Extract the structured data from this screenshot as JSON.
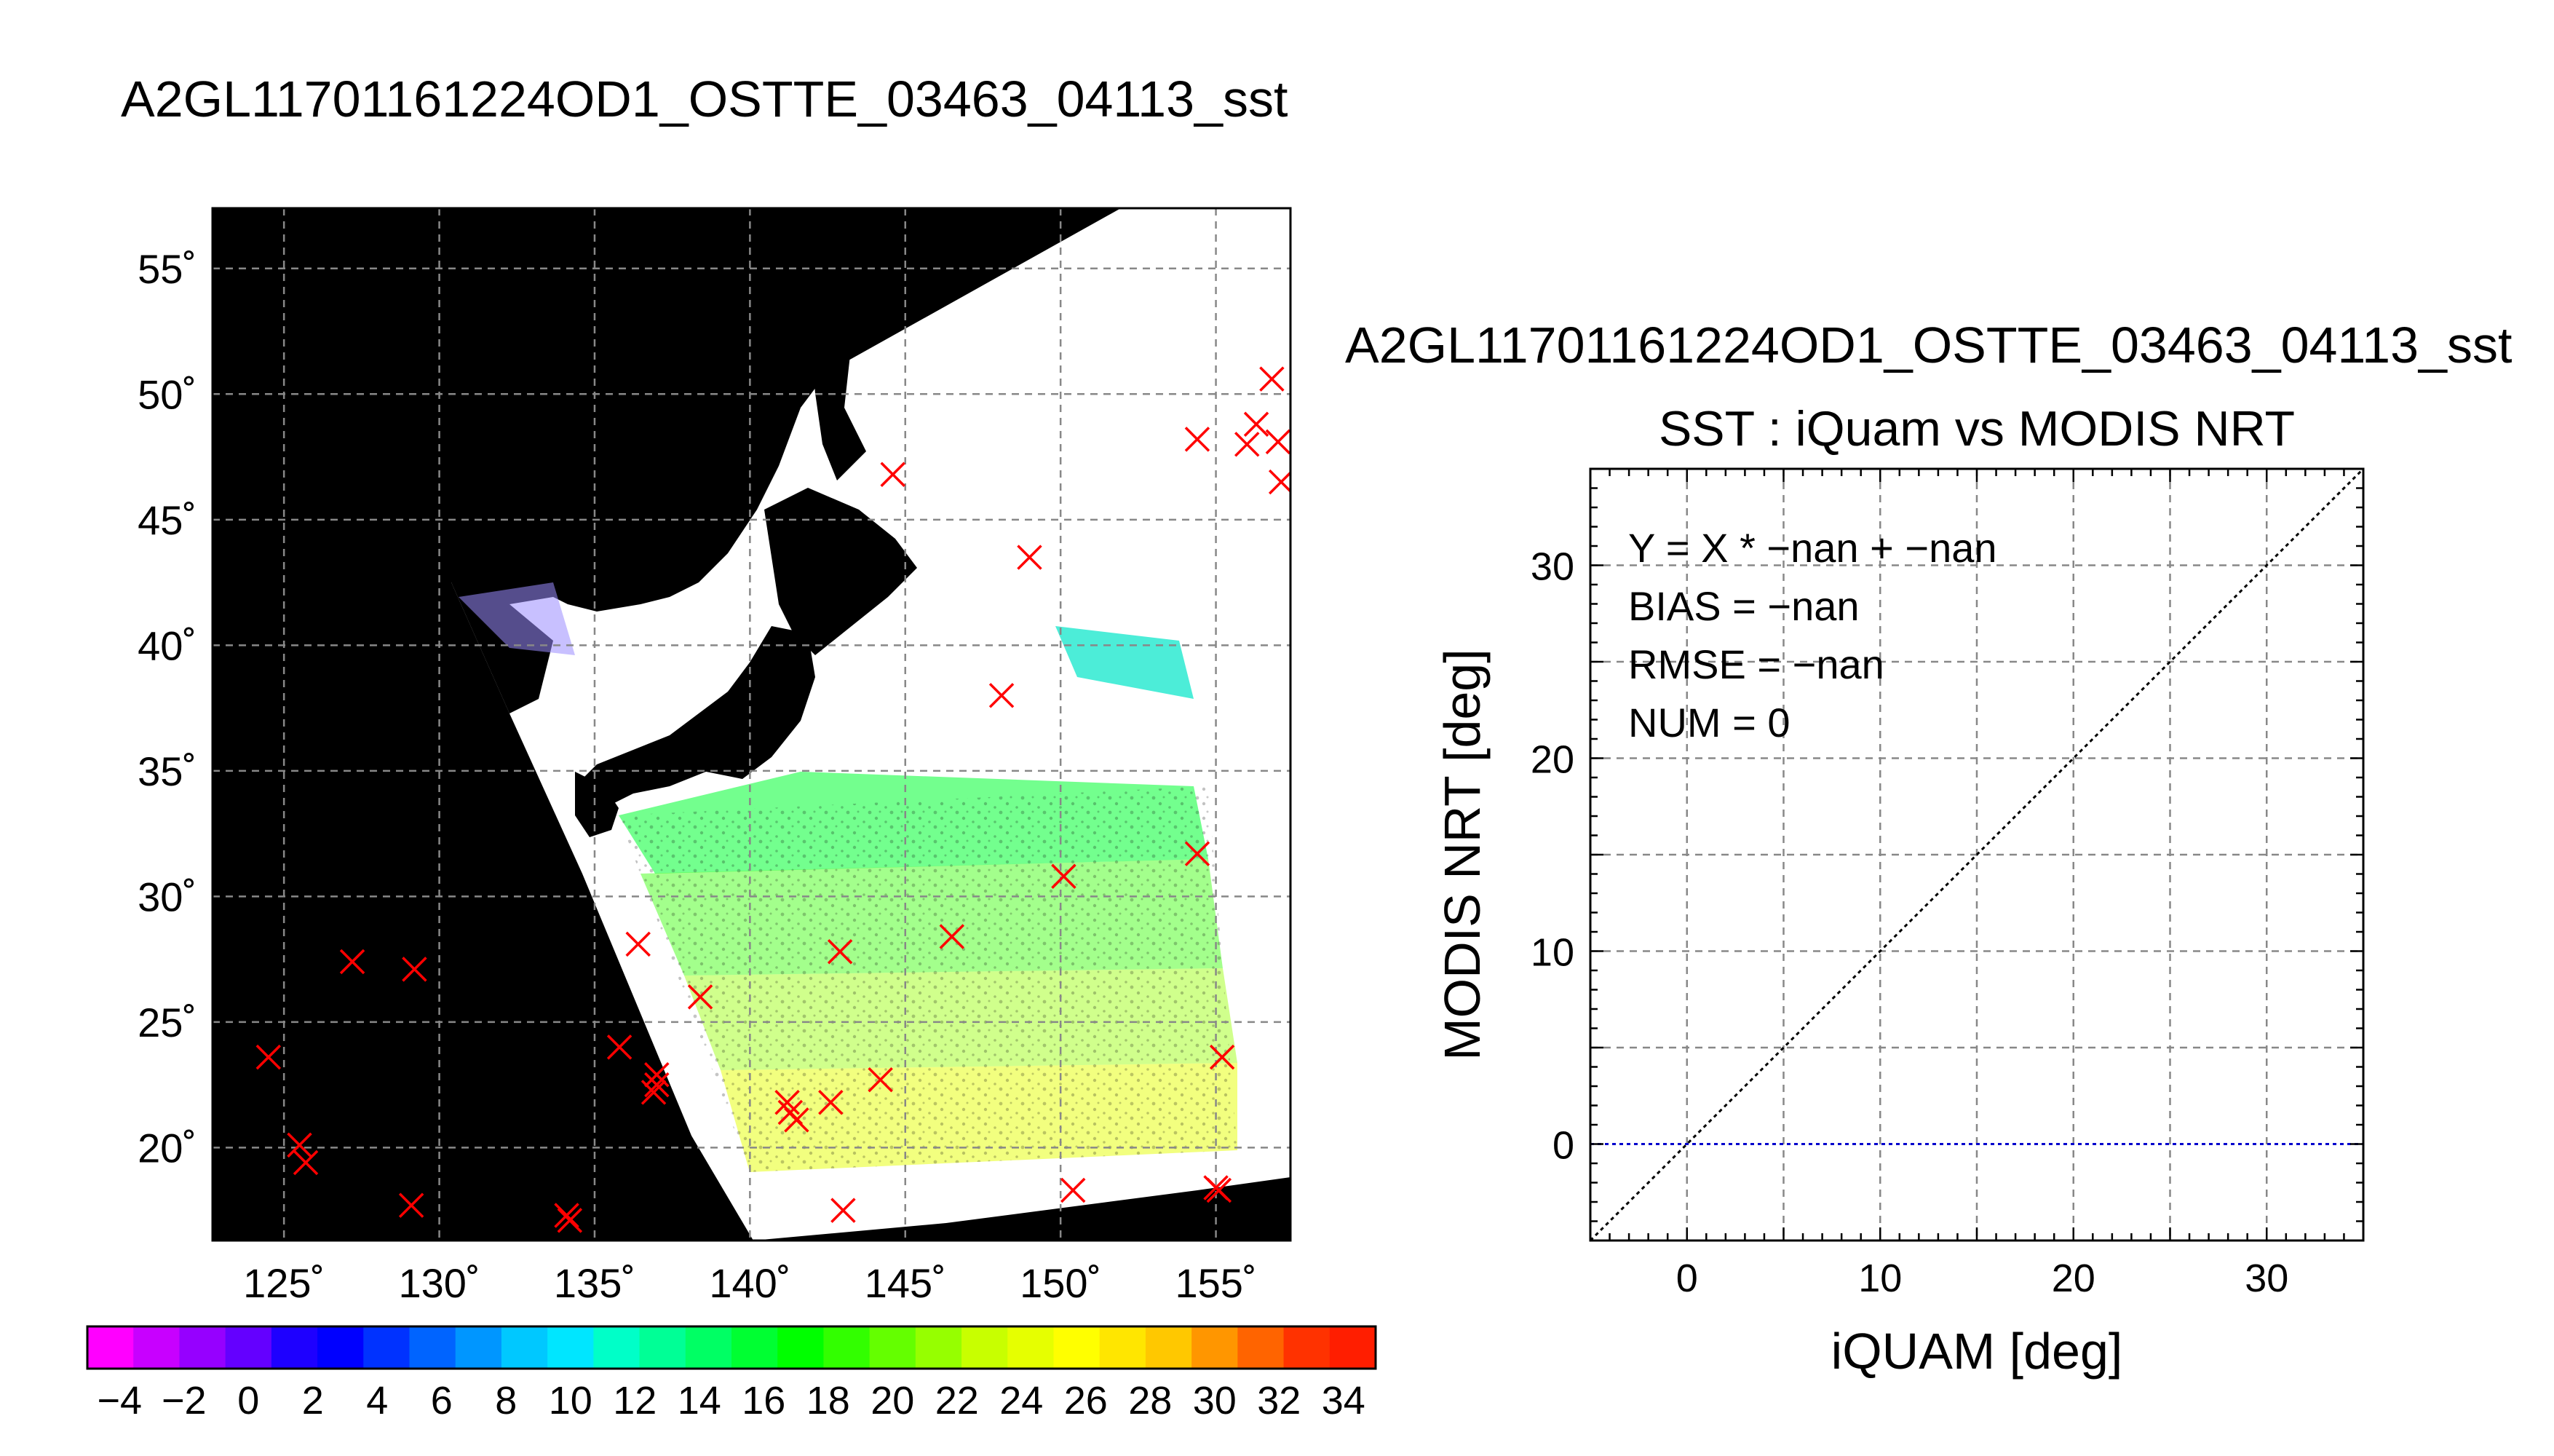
{
  "figure_title": "A2GL11701161224OD1_OSTTE_03463_04113_sst",
  "chart_data": [
    {
      "type": "map",
      "title": "A2GL11701161224OD1_OSTTE_03463_04113_sst",
      "xlim": [
        122.7,
        157.4
      ],
      "ylim": [
        16.3,
        57.4
      ],
      "xticks": [
        125,
        130,
        135,
        140,
        145,
        150,
        155
      ],
      "yticks": [
        20,
        25,
        30,
        35,
        40,
        45,
        50,
        55
      ],
      "xtick_labels": [
        "125˚",
        "130˚",
        "135˚",
        "140˚",
        "145˚",
        "150˚",
        "155˚"
      ],
      "ytick_labels": [
        "20˚",
        "25˚",
        "30˚",
        "35˚",
        "40˚",
        "45˚",
        "50˚",
        "55˚"
      ],
      "grid": true,
      "marker_color": "#ff0000",
      "marker_symbol": "x",
      "iquam_points": [
        {
          "lon": 124.5,
          "lat": 23.6
        },
        {
          "lon": 125.5,
          "lat": 20.1
        },
        {
          "lon": 125.7,
          "lat": 19.4
        },
        {
          "lon": 127.2,
          "lat": 27.4
        },
        {
          "lon": 129.2,
          "lat": 27.1
        },
        {
          "lon": 129.1,
          "lat": 17.7
        },
        {
          "lon": 134.1,
          "lat": 17.3
        },
        {
          "lon": 134.2,
          "lat": 17.1
        },
        {
          "lon": 135.8,
          "lat": 24.0
        },
        {
          "lon": 136.4,
          "lat": 28.1
        },
        {
          "lon": 137.0,
          "lat": 22.9
        },
        {
          "lon": 137.0,
          "lat": 22.5
        },
        {
          "lon": 136.9,
          "lat": 22.2
        },
        {
          "lon": 138.4,
          "lat": 26.0
        },
        {
          "lon": 141.2,
          "lat": 21.8
        },
        {
          "lon": 141.5,
          "lat": 21.1
        },
        {
          "lon": 141.3,
          "lat": 21.4
        },
        {
          "lon": 142.6,
          "lat": 21.8
        },
        {
          "lon": 142.9,
          "lat": 27.8
        },
        {
          "lon": 143.0,
          "lat": 17.5
        },
        {
          "lon": 144.2,
          "lat": 22.7
        },
        {
          "lon": 144.6,
          "lat": 46.8
        },
        {
          "lon": 146.5,
          "lat": 28.4
        },
        {
          "lon": 148.1,
          "lat": 38.0
        },
        {
          "lon": 149.0,
          "lat": 43.5
        },
        {
          "lon": 150.1,
          "lat": 30.8
        },
        {
          "lon": 150.4,
          "lat": 18.3
        },
        {
          "lon": 154.4,
          "lat": 31.7
        },
        {
          "lon": 154.4,
          "lat": 48.2
        },
        {
          "lon": 155.2,
          "lat": 23.6
        },
        {
          "lon": 155.0,
          "lat": 18.4
        },
        {
          "lon": 155.1,
          "lat": 18.3
        },
        {
          "lon": 156.0,
          "lat": 48.0
        },
        {
          "lon": 156.3,
          "lat": 48.8
        },
        {
          "lon": 156.8,
          "lat": 50.6
        },
        {
          "lon": 157.0,
          "lat": 48.1
        },
        {
          "lon": 157.1,
          "lat": 46.5
        }
      ]
    },
    {
      "type": "colorbar",
      "range": [
        -5,
        35
      ],
      "tick_labels": [
        "−4",
        "−2",
        "0",
        "2",
        "4",
        "6",
        "8",
        "10",
        "12",
        "14",
        "16",
        "18",
        "20",
        "22",
        "24",
        "26",
        "28",
        "30",
        "32",
        "34"
      ],
      "tick_values": [
        -4,
        -2,
        0,
        2,
        4,
        6,
        8,
        10,
        12,
        14,
        16,
        18,
        20,
        22,
        24,
        26,
        28,
        30,
        32,
        34
      ],
      "bin_colors": [
        "#ff00ff",
        "#c800ff",
        "#9600ff",
        "#6400ff",
        "#1e00ff",
        "#0000ff",
        "#0032ff",
        "#0064ff",
        "#0096ff",
        "#00c8ff",
        "#00e6ff",
        "#00ffc8",
        "#00ff96",
        "#00ff64",
        "#00ff32",
        "#00ff00",
        "#32ff00",
        "#64ff00",
        "#96ff00",
        "#c8ff00",
        "#e6ff00",
        "#ffff00",
        "#ffe600",
        "#ffc800",
        "#ff9600",
        "#ff6400",
        "#ff3200",
        "#ff1e00"
      ]
    },
    {
      "type": "scatter",
      "title_line1": "A2GL11701161224OD1_OSTTE_03463_04113_sst",
      "title": "SST : iQuam vs MODIS NRT",
      "xlabel": "iQUAM [deg]",
      "ylabel": "MODIS NRT [deg]",
      "xlim": [
        -5,
        35
      ],
      "ylim": [
        -5,
        35
      ],
      "xticks": [
        0,
        10,
        20,
        30
      ],
      "yticks": [
        0,
        10,
        20,
        30
      ],
      "grid": true,
      "stats": [
        "Y = X * −nan + −nan",
        "BIAS = −nan",
        "RMSE = −nan",
        "NUM = 0"
      ],
      "one_to_one_line": [
        [
          -5,
          -5
        ],
        [
          35,
          35
        ]
      ],
      "zero_line": {
        "y": 0,
        "color": "#0000cc"
      },
      "series": []
    }
  ]
}
